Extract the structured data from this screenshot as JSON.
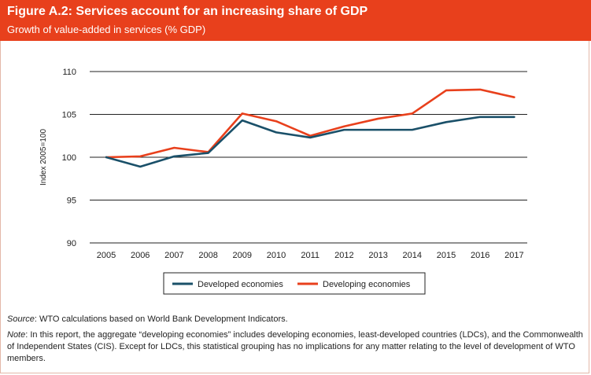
{
  "header": {
    "title": "Figure A.2: Services account for an increasing share of GDP",
    "subtitle": "Growth of value-added in services (% GDP)"
  },
  "colors": {
    "header_bg": "#e8401c",
    "developed": "#1a5069",
    "developing": "#e8401c",
    "gridline": "#222222"
  },
  "chart_data": {
    "type": "line",
    "title": "",
    "xlabel": "",
    "ylabel": "Index 2005=100",
    "ylim": [
      90,
      110
    ],
    "yticks": [
      90,
      95,
      100,
      105,
      110
    ],
    "grid": true,
    "legend_position": "bottom-center",
    "categories": [
      "2005",
      "2006",
      "2007",
      "2008",
      "2009",
      "2010",
      "2011",
      "2012",
      "2013",
      "2014",
      "2015",
      "2016",
      "2017"
    ],
    "series": [
      {
        "name": "Developed economies",
        "color": "#1a5069",
        "values": [
          100.0,
          98.9,
          100.1,
          100.5,
          104.3,
          102.9,
          102.3,
          103.2,
          103.2,
          103.2,
          104.1,
          104.7,
          104.7
        ]
      },
      {
        "name": "Developing economies",
        "color": "#e8401c",
        "values": [
          100.0,
          100.1,
          101.1,
          100.6,
          105.1,
          104.2,
          102.5,
          103.6,
          104.5,
          105.1,
          107.8,
          107.9,
          107.0
        ]
      }
    ]
  },
  "footer": {
    "source_label": "Source",
    "source_text": ": WTO calculations based on World Bank Development Indicators.",
    "note_label": "Note",
    "note_text": ": In this report, the aggregate “developing economies” includes developing economies, least-developed countries (LDCs), and the Commonwealth of Independent States (CIS). Except for LDCs, this statistical grouping has no implications for any matter relating to the level of development of WTO members."
  }
}
